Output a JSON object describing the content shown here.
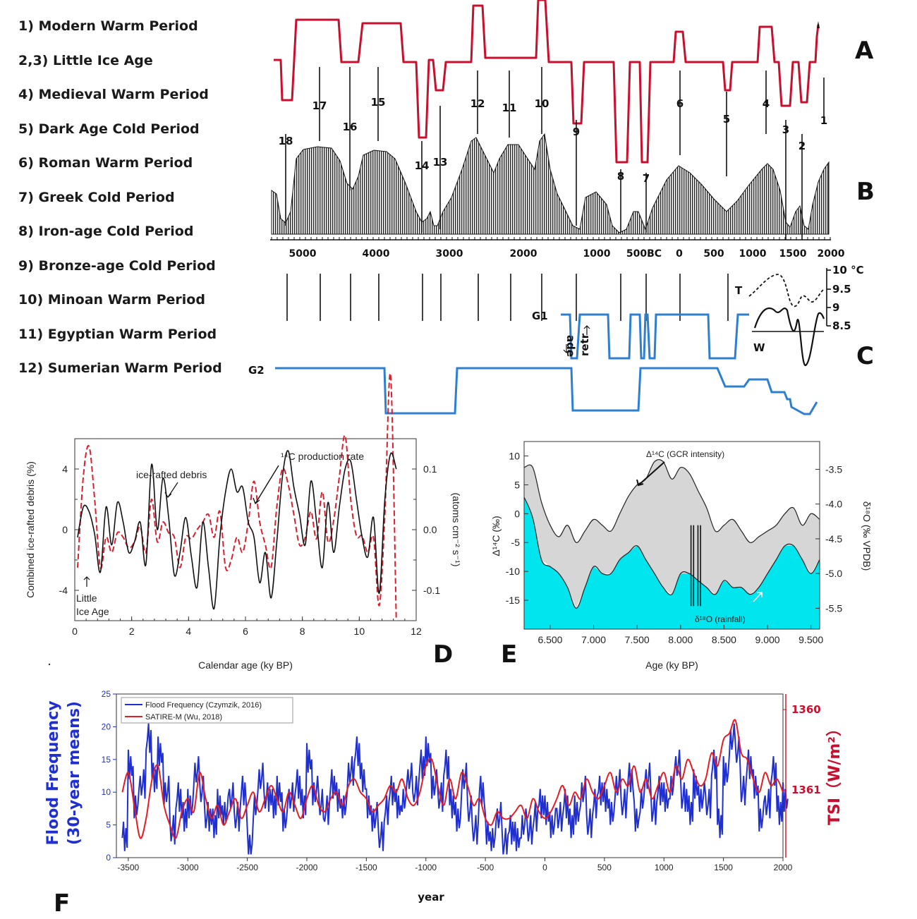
{
  "legend": [
    "1) Modern Warm Period",
    "2,3) Little Ice Age",
    "4) Medieval Warm Period",
    "5) Dark Age Cold Period",
    "6) Roman Warm Period",
    "7) Greek Cold Period",
    "8) Iron-age Cold Period",
    "9)  Bronze-age Cold Period",
    "10) Minoan Warm Period",
    "11) Egyptian Warm Period",
    "12) Sumerian Warm Period"
  ],
  "colors": {
    "red": "#c8102e",
    "blue": "#2f7fd1",
    "dark_blue": "#1f2fd0",
    "cyan": "#00e5ee",
    "grey_fill": "#d6d6d6"
  },
  "chart_data": [
    {
      "type": "line",
      "panel": "A",
      "panel_label": "A",
      "x": [
        -3500,
        -3350,
        -3320,
        -3300,
        -3250,
        -3230,
        -3000,
        -2950,
        -2900,
        -2850,
        -2800,
        -2650,
        -2600,
        -2450,
        -2400,
        -2000,
        -1700,
        -1650,
        -1500,
        -1480,
        -1300,
        -1200,
        -1180,
        -1100,
        -1000,
        -900,
        -850,
        -780,
        -760,
        -700,
        -620,
        -560,
        -540,
        -500,
        -440,
        -420,
        -380,
        -340,
        -250,
        -170,
        -150,
        -100,
        -80,
        -60,
        0,
        80,
        100,
        300,
        500,
        620,
        650,
        700,
        800,
        900,
        1000,
        1100,
        1150,
        1200,
        1250,
        1300,
        1350,
        1400,
        1450,
        1480,
        1500,
        1520,
        1550,
        1580,
        1600,
        1620,
        1640,
        1660,
        1700,
        1800,
        1850,
        1880,
        1900
      ],
      "period_labels": [
        "18",
        "17",
        "16",
        "15",
        "14",
        "13",
        "12",
        "11",
        "10",
        "9",
        "8",
        "7",
        "6",
        "5",
        "4",
        "3",
        "2",
        "1"
      ],
      "period_label_x": [
        -3420,
        -3180,
        -2900,
        -2650,
        -1640,
        -1560,
        -1000,
        -700,
        -450,
        -150,
        250,
        420,
        700,
        1310,
        1530,
        1660,
        1780,
        1930
      ]
    },
    {
      "type": "area",
      "panel": "B",
      "panel_label": "B",
      "x_ticks": [
        "5000",
        "4000",
        "3000",
        "2000",
        "1000",
        "500BC",
        "0",
        "500",
        "1000",
        "1500",
        "2000"
      ]
    },
    {
      "type": "line",
      "panel": "C",
      "panel_label": "C",
      "series": [
        {
          "name": "G1"
        },
        {
          "name": "G2"
        }
      ],
      "text": [
        "ade",
        "retr",
        "T",
        "W"
      ],
      "y_ticks": [
        "10 °C",
        "9.5",
        "9",
        "8.5"
      ]
    },
    {
      "type": "line",
      "panel": "D",
      "panel_label": "D",
      "xlabel": "Calendar age (ky BP)",
      "ylabel": "Combined ice-rafted debris (%)",
      "ylabel_right": "(atoms cm⁻² s⁻¹)",
      "xlim": [
        0,
        12
      ],
      "ylim": [
        -6,
        6
      ],
      "x_ticks": [
        "0",
        "2",
        "4",
        "6",
        "8",
        "10",
        "12"
      ],
      "y_ticks": [
        "4",
        "0",
        "-4"
      ],
      "y_ticks_right": [
        "0.1",
        "0.0",
        "-0.1"
      ],
      "annotations": [
        "ice-rafted debris",
        "¹⁴C production rate",
        "Little",
        "Ice Age"
      ],
      "series": [
        {
          "name": "ice-rafted debris",
          "x": [
            0.1,
            0.3,
            0.5,
            0.7,
            0.9,
            1.1,
            1.3,
            1.5,
            1.7,
            1.9,
            2.1,
            2.3,
            2.5,
            2.7,
            2.9,
            3.1,
            3.3,
            3.5,
            3.7,
            3.9,
            4.1,
            4.3,
            4.5,
            4.7,
            4.9,
            5.1,
            5.3,
            5.5,
            5.7,
            5.9,
            6.1,
            6.3,
            6.5,
            6.7,
            6.9,
            7.1,
            7.3,
            7.5,
            7.7,
            7.9,
            8.1,
            8.3,
            8.5,
            8.7,
            8.9,
            9.1,
            9.3,
            9.5,
            9.7,
            9.9,
            10.1,
            10.3,
            10.5,
            10.7,
            10.9,
            11.1,
            11.3
          ],
          "values": [
            -0.5,
            1.5,
            1.2,
            -0.3,
            -2.8,
            1.5,
            -1.0,
            1.8,
            0.5,
            -1.5,
            -0.8,
            0.5,
            -2.3,
            4.3,
            0.0,
            3.4,
            0.8,
            -3.0,
            -1.5,
            0.8,
            -1.8,
            -3.8,
            0.5,
            -2.5,
            -5.2,
            -0.5,
            2.5,
            4.0,
            2.5,
            2.8,
            0.5,
            -0.5,
            -3.5,
            -1.5,
            -4.5,
            -0.8,
            3.5,
            5.2,
            2.8,
            1.0,
            -1.0,
            3.2,
            0.5,
            -2.5,
            1.8,
            -1.5,
            1.5,
            4.0,
            4.5,
            2.0,
            -0.5,
            -1.8,
            0.8,
            -4.2,
            2.0,
            5.0,
            4.0
          ]
        },
        {
          "name": "¹⁴C production rate",
          "x": [
            0.1,
            0.3,
            0.5,
            0.7,
            0.9,
            1.1,
            1.3,
            1.5,
            1.7,
            1.9,
            2.1,
            2.3,
            2.5,
            2.7,
            2.9,
            3.1,
            3.3,
            3.5,
            3.7,
            3.9,
            4.1,
            4.3,
            4.5,
            4.7,
            4.9,
            5.1,
            5.3,
            5.5,
            5.7,
            5.9,
            6.1,
            6.3,
            6.5,
            6.7,
            6.9,
            7.1,
            7.3,
            7.5,
            7.7,
            7.9,
            8.1,
            8.3,
            8.5,
            8.7,
            8.9,
            9.1,
            9.3,
            9.5,
            9.7,
            9.9,
            10.1,
            10.3,
            10.5,
            10.7,
            10.9,
            11.1,
            11.3
          ],
          "values": [
            -2.5,
            3.5,
            5.5,
            2.0,
            -2.5,
            -0.5,
            -1.5,
            -0.2,
            -0.5,
            -1.2,
            -0.8,
            0.2,
            -1.5,
            2.0,
            -0.8,
            0.5,
            -0.2,
            -0.5,
            -2.5,
            -0.5,
            -0.6,
            0.0,
            0.5,
            1.0,
            -0.5,
            1.2,
            -2.5,
            -2.0,
            -0.5,
            -1.5,
            0.5,
            3.2,
            0.5,
            -1.0,
            -2.5,
            1.5,
            4.0,
            3.0,
            1.0,
            -1.0,
            -0.5,
            1.2,
            -0.6,
            2.5,
            -0.8,
            0.6,
            3.5,
            6.2,
            2.0,
            -0.4,
            -0.4,
            -1.5,
            -0.5,
            -5.0,
            1.0,
            10.2,
            -6.0
          ]
        }
      ]
    },
    {
      "type": "area",
      "panel": "E",
      "panel_label": "E",
      "xlabel": "Age (ky BP)",
      "ylabel": "Δ¹⁴C (‰)",
      "ylabel_right": "δ¹⁸O (‰ VPDB)",
      "xlim": [
        6.2,
        9.6
      ],
      "ylim": [
        -20,
        12.5
      ],
      "x_ticks": [
        "6.500",
        "7.000",
        "7.500",
        "8.000",
        "8.500",
        "9.000",
        "9.500"
      ],
      "y_ticks": [
        "10",
        "5",
        "0",
        "-5",
        "-10",
        "-15"
      ],
      "y_ticks_right": [
        "-3.5",
        "-4.0",
        "-4.5",
        "-5.0",
        "-5.5"
      ],
      "annotations": [
        "Δ¹⁴C (GCR intensity)",
        "δ¹⁸O (rainfall)"
      ],
      "series": [
        {
          "name": "Δ¹⁴C (GCR intensity)",
          "x": [
            6.2,
            6.3,
            6.4,
            6.5,
            6.6,
            6.7,
            6.8,
            6.9,
            7.0,
            7.1,
            7.2,
            7.3,
            7.4,
            7.5,
            7.6,
            7.7,
            7.8,
            7.9,
            8.0,
            8.1,
            8.2,
            8.3,
            8.4,
            8.5,
            8.6,
            8.7,
            8.8,
            8.9,
            9.0,
            9.1,
            9.2,
            9.3,
            9.4,
            9.5,
            9.6
          ],
          "values": [
            8,
            8,
            2,
            -2,
            -4,
            -2,
            -5,
            -3,
            -1,
            -2,
            -3,
            0,
            3,
            5,
            6,
            9,
            9,
            6,
            8,
            7,
            4,
            1,
            -3,
            -2,
            -1,
            -3,
            -5,
            -4,
            -3,
            -2,
            0,
            1,
            -2,
            0,
            -1
          ]
        },
        {
          "name": "δ¹⁸O (rainfall)",
          "x": [
            6.2,
            6.3,
            6.4,
            6.5,
            6.6,
            6.7,
            6.8,
            6.9,
            7.0,
            7.1,
            7.2,
            7.3,
            7.4,
            7.5,
            7.6,
            7.7,
            7.8,
            7.9,
            8.0,
            8.1,
            8.2,
            8.3,
            8.4,
            8.5,
            8.6,
            8.7,
            8.8,
            8.9,
            9.0,
            9.1,
            9.2,
            9.3,
            9.4,
            9.5,
            9.6
          ],
          "values": [
            -3.9,
            -4.2,
            -4.8,
            -4.9,
            -5.0,
            -5.2,
            -5.5,
            -5.2,
            -4.9,
            -5.0,
            -5.0,
            -4.8,
            -4.7,
            -4.6,
            -4.8,
            -5.0,
            -5.2,
            -5.3,
            -5.0,
            -5.0,
            -5.1,
            -5.2,
            -5.3,
            -5.1,
            -5.2,
            -5.2,
            -5.3,
            -5.2,
            -5.0,
            -4.8,
            -4.6,
            -4.6,
            -4.8,
            -5.0,
            -4.8
          ]
        }
      ]
    },
    {
      "type": "line",
      "panel": "F",
      "panel_label": "F",
      "xlabel": "year",
      "ylabel": "Flood Frequency",
      "ylabel_line2": "(30-year means)",
      "ylabel_right": "TSI（W/m²）",
      "xlim": [
        -3600,
        2000
      ],
      "ylim": [
        0,
        25
      ],
      "x_ticks": [
        "-3500",
        "-3000",
        "-2500",
        "-2000",
        "-1500",
        "-1000",
        "-500",
        "0",
        "500",
        "1000",
        "1500",
        "2000"
      ],
      "y_ticks": [
        "0",
        "5",
        "10",
        "15",
        "20",
        "25"
      ],
      "y_ticks_right": [
        "1360",
        "1361"
      ],
      "legend_position": "top-left",
      "series": [
        {
          "name": "Flood Frequency (Czymzik, 2016)",
          "x": [
            -3550,
            -3500,
            -3450,
            -3400,
            -3350,
            -3300,
            -3250,
            -3200,
            -3150,
            -3100,
            -3050,
            -3000,
            -2950,
            -2900,
            -2850,
            -2800,
            -2750,
            -2700,
            -2650,
            -2600,
            -2550,
            -2500,
            -2450,
            -2400,
            -2350,
            -2300,
            -2250,
            -2200,
            -2150,
            -2100,
            -2050,
            -2000,
            -1950,
            -1900,
            -1850,
            -1800,
            -1750,
            -1700,
            -1650,
            -1600,
            -1550,
            -1500,
            -1450,
            -1400,
            -1350,
            -1300,
            -1250,
            -1200,
            -1150,
            -1100,
            -1050,
            -1000,
            -950,
            -900,
            -850,
            -800,
            -750,
            -700,
            -650,
            -600,
            -550,
            -500,
            -450,
            -400,
            -350,
            -300,
            -250,
            -200,
            -150,
            -100,
            -50,
            0,
            50,
            100,
            150,
            200,
            250,
            300,
            350,
            400,
            450,
            500,
            550,
            600,
            650,
            700,
            750,
            800,
            850,
            900,
            950,
            1000,
            1050,
            1100,
            1150,
            1200,
            1250,
            1300,
            1350,
            1400,
            1450,
            1500,
            1550,
            1600,
            1650,
            1700,
            1750,
            1800,
            1850,
            1900,
            1950,
            2000
          ],
          "values": [
            3,
            14,
            8,
            11,
            18,
            12,
            16,
            10,
            4,
            9,
            6,
            8,
            13,
            10,
            6,
            5,
            8,
            7,
            9,
            6,
            10,
            2,
            8,
            12,
            9,
            8,
            10,
            6,
            9,
            11,
            8,
            15,
            10,
            8,
            7,
            11,
            9,
            8,
            13,
            16,
            12,
            8,
            6,
            3,
            7,
            10,
            8,
            9,
            12,
            10,
            14,
            16,
            11,
            9,
            14,
            8,
            6,
            12,
            7,
            4,
            10,
            4,
            3,
            6,
            2,
            4,
            3,
            5,
            4,
            6,
            8,
            7,
            5,
            6,
            8,
            5,
            7,
            10,
            5,
            8,
            10,
            9,
            7,
            11,
            8,
            12,
            6,
            9,
            12,
            7,
            10,
            9,
            11,
            14,
            9,
            7,
            11,
            9,
            8,
            14,
            5,
            13,
            18,
            16,
            10,
            14,
            11,
            6,
            8,
            13,
            7,
            9
          ],
          "color": "#1f2fd0"
        },
        {
          "name": "SATIRE-M (Wu, 2018)",
          "x": [
            -3550,
            -3500,
            -3450,
            -3400,
            -3350,
            -3300,
            -3250,
            -3200,
            -3150,
            -3100,
            -3050,
            -3000,
            -2950,
            -2900,
            -2850,
            -2800,
            -2750,
            -2700,
            -2650,
            -2600,
            -2550,
            -2500,
            -2450,
            -2400,
            -2350,
            -2300,
            -2250,
            -2200,
            -2150,
            -2100,
            -2050,
            -2000,
            -1950,
            -1900,
            -1850,
            -1800,
            -1750,
            -1700,
            -1650,
            -1600,
            -1550,
            -1500,
            -1450,
            -1400,
            -1350,
            -1300,
            -1250,
            -1200,
            -1150,
            -1100,
            -1050,
            -1000,
            -950,
            -900,
            -850,
            -800,
            -750,
            -700,
            -650,
            -600,
            -550,
            -500,
            -450,
            -400,
            -350,
            -300,
            -250,
            -200,
            -150,
            -100,
            -50,
            0,
            50,
            100,
            150,
            200,
            250,
            300,
            350,
            400,
            450,
            500,
            550,
            600,
            650,
            700,
            750,
            800,
            850,
            900,
            950,
            1000,
            1050,
            1100,
            1150,
            1200,
            1250,
            1300,
            1350,
            1400,
            1450,
            1500,
            1550,
            1600,
            1650,
            1700,
            1750,
            1800,
            1850,
            1900,
            1950,
            2000
          ],
          "values": [
            10,
            13,
            8,
            3,
            6,
            12,
            14,
            8,
            5,
            3,
            7,
            9,
            7,
            13,
            9,
            6,
            8,
            5,
            7,
            9,
            6,
            8,
            10,
            7,
            9,
            11,
            9,
            7,
            10,
            8,
            6,
            9,
            11,
            8,
            7,
            9,
            10,
            8,
            11,
            12,
            10,
            9,
            7,
            8,
            9,
            11,
            10,
            12,
            9,
            8,
            10,
            14,
            15,
            11,
            8,
            12,
            9,
            13,
            11,
            8,
            9,
            6,
            5,
            7,
            6,
            6,
            7,
            8,
            6,
            9,
            7,
            6,
            7,
            9,
            11,
            8,
            10,
            9,
            12,
            10,
            9,
            11,
            13,
            10,
            12,
            11,
            14,
            10,
            12,
            9,
            11,
            13,
            10,
            14,
            12,
            15,
            13,
            11,
            12,
            16,
            14,
            18,
            19,
            21,
            16,
            15,
            12,
            10,
            13,
            11,
            12,
            10
          ],
          "color": "#e51c23"
        }
      ]
    }
  ]
}
